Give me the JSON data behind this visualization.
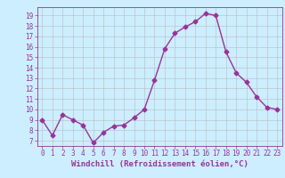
{
  "x": [
    0,
    1,
    2,
    3,
    4,
    5,
    6,
    7,
    8,
    9,
    10,
    11,
    12,
    13,
    14,
    15,
    16,
    17,
    18,
    19,
    20,
    21,
    22,
    23
  ],
  "y": [
    9,
    7.5,
    9.5,
    9,
    8.5,
    6.8,
    7.8,
    8.4,
    8.5,
    9.2,
    10.0,
    12.8,
    15.8,
    17.3,
    17.9,
    18.4,
    19.2,
    19.0,
    15.5,
    13.5,
    12.6,
    11.2,
    10.2,
    10.0
  ],
  "color": "#993399",
  "bg_color": "#cceeff",
  "grid_color": "#bbbbbb",
  "xlabel": "Windchill (Refroidissement éolien,°C)",
  "xlim": [
    -0.5,
    23.5
  ],
  "ylim": [
    6.5,
    19.8
  ],
  "yticks": [
    7,
    8,
    9,
    10,
    11,
    12,
    13,
    14,
    15,
    16,
    17,
    18,
    19
  ],
  "xticks": [
    0,
    1,
    2,
    3,
    4,
    5,
    6,
    7,
    8,
    9,
    10,
    11,
    12,
    13,
    14,
    15,
    16,
    17,
    18,
    19,
    20,
    21,
    22,
    23
  ],
  "marker": "D",
  "markersize": 2.5,
  "linewidth": 1.0,
  "xlabel_fontsize": 6.5,
  "tick_fontsize": 5.5
}
